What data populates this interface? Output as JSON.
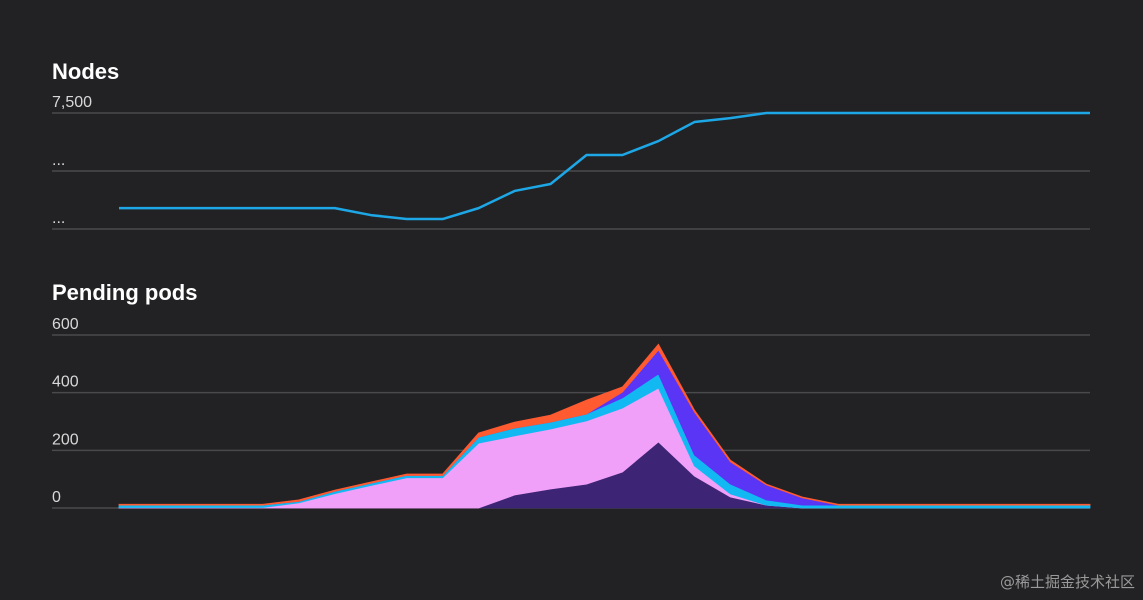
{
  "watermark": "@稀土掘金技术社区",
  "chart_data": [
    {
      "type": "line",
      "title": "Nodes",
      "x": [
        0,
        1,
        2,
        3,
        4,
        5,
        6,
        7,
        8,
        9,
        10,
        11,
        12,
        13,
        14,
        15,
        16,
        17,
        18,
        19,
        20,
        21,
        22,
        23,
        24,
        25,
        26,
        27
      ],
      "ytick_labels": [
        "7,500",
        "...",
        "..."
      ],
      "yticks": [
        7500,
        5000,
        2500
      ],
      "ylim": [
        2500,
        7500
      ],
      "grid": true,
      "color": "#1ea7e6",
      "values": [
        3400,
        3400,
        3400,
        3400,
        3400,
        3400,
        3400,
        3100,
        2930,
        2930,
        3400,
        4140,
        4440,
        5690,
        5690,
        6290,
        7110,
        7280,
        7500,
        7500,
        7500,
        7500,
        7500,
        7500,
        7500,
        7500,
        7500,
        7500
      ]
    },
    {
      "type": "area",
      "stacked": true,
      "title": "Pending pods",
      "x": [
        0,
        1,
        2,
        3,
        4,
        5,
        6,
        7,
        8,
        9,
        10,
        11,
        12,
        13,
        14,
        15,
        16,
        17,
        18,
        19,
        20,
        21,
        22,
        23,
        24,
        25,
        26,
        27
      ],
      "yticks": [
        0,
        200,
        400,
        600
      ],
      "ytick_labels": [
        "0",
        "200",
        "400",
        "600"
      ],
      "ylim": [
        0,
        600
      ],
      "grid": true,
      "series": [
        {
          "color": "#3d2474",
          "values": [
            0,
            0,
            0,
            0,
            0,
            0,
            0,
            0,
            0,
            0,
            0,
            45,
            66,
            83,
            125,
            229,
            111,
            38,
            10,
            0,
            0,
            0,
            0,
            0,
            0,
            0,
            0,
            0
          ]
        },
        {
          "color": "#f0a0f8",
          "values": [
            2,
            2,
            2,
            2,
            2,
            18,
            50,
            78,
            105,
            105,
            225,
            205,
            208,
            219,
            222,
            187,
            35,
            11,
            0,
            0,
            0,
            0,
            0,
            0,
            0,
            0,
            0,
            0
          ]
        },
        {
          "color": "#12b8f2",
          "values": [
            8,
            8,
            8,
            8,
            8,
            5,
            8,
            8,
            8,
            8,
            21,
            27,
            24,
            24,
            35,
            49,
            38,
            34,
            18,
            10,
            10,
            10,
            10,
            10,
            10,
            10,
            10,
            10
          ]
        },
        {
          "color": "#5b35f5",
          "values": [
            0,
            0,
            0,
            0,
            0,
            0,
            0,
            0,
            0,
            0,
            0,
            0,
            0,
            0,
            20,
            83,
            149,
            77,
            52,
            25,
            0,
            0,
            0,
            0,
            0,
            0,
            0,
            0
          ]
        },
        {
          "color": "#ff5a30",
          "values": [
            3,
            3,
            3,
            3,
            3,
            5,
            4,
            4,
            5,
            5,
            14,
            21,
            24,
            48,
            18,
            20,
            7,
            6,
            3,
            3,
            3,
            3,
            3,
            3,
            3,
            3,
            3,
            3
          ]
        }
      ]
    }
  ]
}
